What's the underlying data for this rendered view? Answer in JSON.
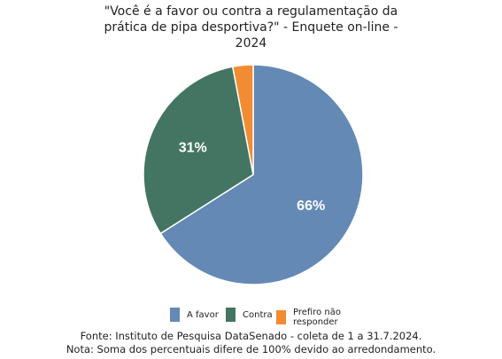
{
  "title_lines": [
    "\"Você é a favor ou contra a regulamentação da",
    "prática de pipa desportiva?\" - Enquete on-line -",
    "2024"
  ],
  "chart_data": {
    "type": "pie",
    "title": "\"Você é a favor ou contra a regulamentação da prática de pipa desportiva?\" - Enquete on-line - 2024",
    "series": [
      {
        "name": "A favor",
        "value": 66,
        "label": "66%",
        "color": "#6489b5"
      },
      {
        "name": "Contra",
        "value": 31,
        "label": "31%",
        "color": "#437562"
      },
      {
        "name": "Prefiro não responder",
        "value": 3,
        "label": "",
        "color": "#f28c33"
      }
    ],
    "legend_position": "bottom"
  },
  "legend": {
    "afavor": {
      "label": "A favor",
      "color": "#6489b5"
    },
    "contra": {
      "label": "Contra",
      "color": "#437562"
    },
    "prefiro_line1": "Prefiro não",
    "prefiro_line2": "responder",
    "prefiro_color": "#f28c33"
  },
  "footer": {
    "source": "Fonte: Instituto de Pesquisa DataSenado - coleta de 1 a 31.7.2024.",
    "note": "Nota: Soma dos percentuais difere de 100% devido ao arredondamento."
  }
}
